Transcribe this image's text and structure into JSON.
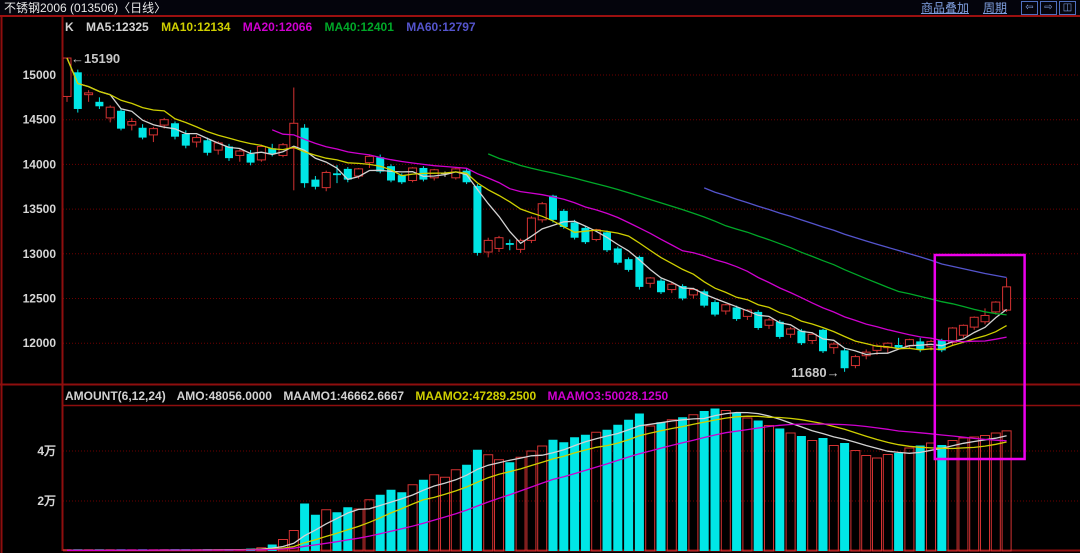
{
  "title_bar": {
    "title": "不锈钢2006 (013506)〈日线〉",
    "overlay_label": "商品叠加",
    "period_label": "周期",
    "window_icons": [
      "left-arrow",
      "right-arrow",
      "split-window"
    ],
    "icon_glyphs": {
      "left": "⇦",
      "right": "⇨",
      "split": "◫"
    }
  },
  "main_chart": {
    "header": [
      {
        "text": "K",
        "color": "#d2d2d2"
      },
      {
        "text": "MA5:12325",
        "color": "#d2d2d2"
      },
      {
        "text": "MA10:12134",
        "color": "#cfcf00"
      },
      {
        "text": "MA20:12066",
        "color": "#cf00cf"
      },
      {
        "text": "MA40:12401",
        "color": "#00a828"
      },
      {
        "text": "MA60:12797",
        "color": "#5454cc"
      }
    ],
    "annotation_high": "15190",
    "annotation_low": "11680"
  },
  "volume_panel": {
    "header": [
      {
        "text": "AMOUNT(6,12,24)",
        "color": "#d2d2d2"
      },
      {
        "text": "AMO:48056.0000",
        "color": "#d2d2d2"
      },
      {
        "text": "MAAMO1:46662.6667",
        "color": "#d2d2d2"
      },
      {
        "text": "MAAMO2:47289.2500",
        "color": "#cfcf00"
      },
      {
        "text": "MAAMO3:50028.1250",
        "color": "#cf00cf"
      }
    ]
  },
  "colors": {
    "up": "#d43232",
    "down": "#00e6e6",
    "doji": "#d2d2d2",
    "ma5": "#d2d2d2",
    "ma10": "#cfcf00",
    "ma20": "#cf00cf",
    "ma40": "#00a828",
    "ma60": "#5454cc",
    "vma1": "#d2d2d2",
    "vma2": "#cfcf00",
    "vma3": "#cf00cf",
    "grid": "#6e0000",
    "axis": "#8e0e0e",
    "frame": "#9b1010",
    "highlight": "#ee00ee",
    "label": "#d6d6d6",
    "annotation": "#c8c8c8",
    "link": "#7f9fdf"
  },
  "chart_data": {
    "type": "candlestick",
    "x_unit": "trading_day",
    "price_ticks": [
      {
        "label": "15000",
        "value": 15000
      },
      {
        "label": "14500",
        "value": 14500
      },
      {
        "label": "14000",
        "value": 14000
      },
      {
        "label": "13500",
        "value": 13500
      },
      {
        "label": "13000",
        "value": 13000
      },
      {
        "label": "12500",
        "value": 12500
      },
      {
        "label": "12000",
        "value": 12000
      }
    ],
    "volume_ticks": [
      {
        "label": "4万",
        "value": 40000
      },
      {
        "label": "2万",
        "value": 20000
      }
    ],
    "ma_price_periods": [
      5,
      10,
      20,
      40,
      60
    ],
    "ma_volume_periods": [
      6,
      12,
      24
    ],
    "highlight_box_indices": [
      81,
      87
    ],
    "annotated_high": {
      "index": 0,
      "price": 15190
    },
    "annotated_low": {
      "index": 72,
      "price": 11680
    },
    "candles": [
      [
        14760,
        15190,
        14700,
        15190
      ],
      [
        15030,
        15060,
        14580,
        14620
      ],
      [
        14780,
        14830,
        14700,
        14800
      ],
      [
        14700,
        14750,
        14620,
        14650
      ],
      [
        14520,
        14660,
        14470,
        14640
      ],
      [
        14600,
        14620,
        14380,
        14400
      ],
      [
        14440,
        14520,
        14380,
        14480
      ],
      [
        14410,
        14450,
        14280,
        14300
      ],
      [
        14330,
        14420,
        14250,
        14400
      ],
      [
        14440,
        14520,
        14400,
        14500
      ],
      [
        14460,
        14480,
        14280,
        14310
      ],
      [
        14340,
        14380,
        14180,
        14210
      ],
      [
        14250,
        14330,
        14190,
        14300
      ],
      [
        14270,
        14300,
        14100,
        14130
      ],
      [
        14160,
        14260,
        14110,
        14240
      ],
      [
        14200,
        14230,
        14040,
        14070
      ],
      [
        14100,
        14170,
        14030,
        14150
      ],
      [
        14120,
        14160,
        13990,
        14020
      ],
      [
        14050,
        14220,
        14030,
        14200
      ],
      [
        14180,
        14230,
        14090,
        14120
      ],
      [
        14100,
        14240,
        14080,
        14220
      ],
      [
        14180,
        14860,
        13710,
        14460
      ],
      [
        14410,
        14450,
        13740,
        13790
      ],
      [
        13830,
        13870,
        13720,
        13750
      ],
      [
        13740,
        13930,
        13700,
        13910
      ],
      [
        13900,
        13990,
        13790,
        13880
      ],
      [
        13950,
        13970,
        13800,
        13830
      ],
      [
        13870,
        13960,
        13840,
        13950
      ],
      [
        14020,
        14100,
        13960,
        14090
      ],
      [
        14080,
        14110,
        13900,
        13920
      ],
      [
        13980,
        14000,
        13800,
        13820
      ],
      [
        13880,
        13900,
        13780,
        13800
      ],
      [
        13820,
        13970,
        13800,
        13960
      ],
      [
        13960,
        13980,
        13810,
        13830
      ],
      [
        13850,
        13950,
        13820,
        13940
      ],
      [
        13890,
        13920,
        13860,
        13900
      ],
      [
        13850,
        13960,
        13830,
        13950
      ],
      [
        13930,
        13950,
        13780,
        13800
      ],
      [
        13760,
        13780,
        12980,
        13010
      ],
      [
        13020,
        13180,
        12960,
        13150
      ],
      [
        13060,
        13200,
        13020,
        13180
      ],
      [
        13120,
        13160,
        13040,
        13100
      ],
      [
        13050,
        13170,
        13010,
        13150
      ],
      [
        13150,
        13420,
        13120,
        13400
      ],
      [
        13380,
        13580,
        13350,
        13560
      ],
      [
        13650,
        13660,
        13350,
        13380
      ],
      [
        13480,
        13500,
        13280,
        13300
      ],
      [
        13350,
        13380,
        13160,
        13180
      ],
      [
        13290,
        13310,
        13110,
        13130
      ],
      [
        13160,
        13280,
        13140,
        13270
      ],
      [
        13240,
        13260,
        13020,
        13040
      ],
      [
        13060,
        13080,
        12880,
        12900
      ],
      [
        12940,
        12960,
        12800,
        12820
      ],
      [
        12965,
        12980,
        12600,
        12630
      ],
      [
        12670,
        12740,
        12620,
        12730
      ],
      [
        12700,
        12720,
        12550,
        12570
      ],
      [
        12600,
        12680,
        12560,
        12660
      ],
      [
        12640,
        12660,
        12480,
        12500
      ],
      [
        12540,
        12620,
        12500,
        12600
      ],
      [
        12580,
        12600,
        12400,
        12420
      ],
      [
        12460,
        12480,
        12300,
        12320
      ],
      [
        12360,
        12440,
        12320,
        12430
      ],
      [
        12400,
        12420,
        12250,
        12270
      ],
      [
        12300,
        12380,
        12260,
        12370
      ],
      [
        12350,
        12370,
        12150,
        12170
      ],
      [
        12200,
        12280,
        12160,
        12260
      ],
      [
        12240,
        12260,
        12050,
        12070
      ],
      [
        12100,
        12180,
        12060,
        12160
      ],
      [
        12140,
        12160,
        11980,
        12000
      ],
      [
        12030,
        12110,
        11990,
        12100
      ],
      [
        12150,
        12160,
        11890,
        11910
      ],
      [
        11950,
        12010,
        11880,
        11990
      ],
      [
        11920,
        11950,
        11680,
        11720
      ],
      [
        11750,
        11870,
        11720,
        11850
      ],
      [
        11860,
        11930,
        11820,
        11900
      ],
      [
        11920,
        11990,
        11870,
        11970
      ],
      [
        11950,
        12010,
        11890,
        12000
      ],
      [
        11980,
        12060,
        11930,
        11950
      ],
      [
        11970,
        12050,
        11940,
        12040
      ],
      [
        12020,
        12060,
        11900,
        11930
      ],
      [
        11960,
        12040,
        11920,
        12020
      ],
      [
        12035,
        12050,
        11900,
        11920
      ],
      [
        12010,
        12180,
        11980,
        12170
      ],
      [
        12090,
        12210,
        12060,
        12200
      ],
      [
        12180,
        12300,
        12150,
        12290
      ],
      [
        12240,
        12390,
        12210,
        12310
      ],
      [
        12350,
        12470,
        12320,
        12460
      ],
      [
        12370,
        12730,
        12350,
        12630
      ]
    ],
    "volumes": [
      300,
      260,
      280,
      320,
      300,
      350,
      400,
      380,
      420,
      450,
      400,
      380,
      430,
      460,
      500,
      620,
      760,
      950,
      1300,
      2600,
      4600,
      8200,
      19000,
      14500,
      16500,
      15500,
      17500,
      16800,
      20500,
      22500,
      24500,
      23500,
      26500,
      28500,
      30500,
      29500,
      32500,
      34500,
      40500,
      38500,
      36500,
      35500,
      37500,
      40000,
      42000,
      44500,
      43500,
      45500,
      46500,
      47500,
      48500,
      50500,
      52500,
      55000,
      50000,
      51500,
      52500,
      53500,
      54500,
      56000,
      57000,
      56200,
      55200,
      53200,
      52200,
      50200,
      49000,
      47200,
      46000,
      44200,
      45200,
      42200,
      43200,
      40200,
      38200,
      37200,
      38600,
      39200,
      41200,
      42200,
      43200,
      42400,
      44200,
      45200,
      45600,
      46200,
      47200,
      48056
    ]
  }
}
